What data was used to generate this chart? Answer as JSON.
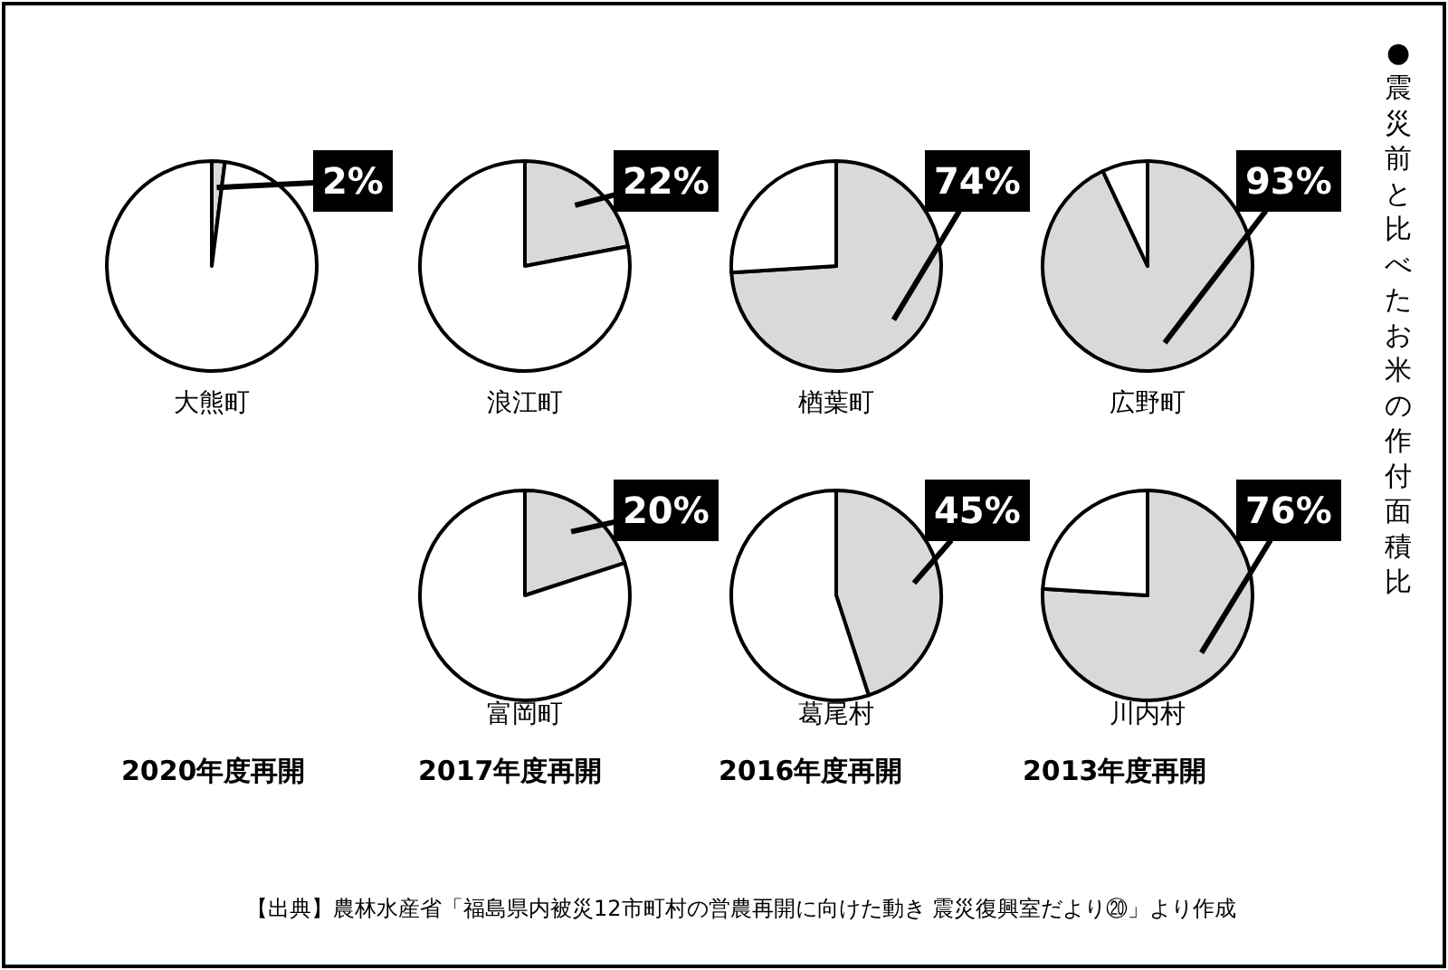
{
  "chart_data": [
    {
      "type": "pie",
      "title": "大熊町",
      "categories": [
        null,
        null
      ],
      "values": [
        2,
        98
      ],
      "colors": [
        "#d9d9d9",
        "#ffffff"
      ],
      "value_labels": [
        "2%",
        null
      ]
    },
    {
      "type": "pie",
      "title": "浪江町",
      "categories": [
        null,
        null
      ],
      "values": [
        22,
        78
      ],
      "colors": [
        "#d9d9d9",
        "#ffffff"
      ],
      "value_labels": [
        "22%",
        null
      ]
    },
    {
      "type": "pie",
      "title": "楢葉町",
      "categories": [
        null,
        null
      ],
      "values": [
        74,
        26
      ],
      "colors": [
        "#d9d9d9",
        "#ffffff"
      ],
      "value_labels": [
        "74%",
        null
      ]
    },
    {
      "type": "pie",
      "title": "広野町",
      "categories": [
        null,
        null
      ],
      "values": [
        93,
        7
      ],
      "colors": [
        "#d9d9d9",
        "#ffffff"
      ],
      "value_labels": [
        "93%",
        null
      ]
    },
    {
      "type": "pie",
      "title": "富岡町",
      "categories": [
        null,
        null
      ],
      "values": [
        20,
        80
      ],
      "colors": [
        "#d9d9d9",
        "#ffffff"
      ],
      "value_labels": [
        "20%",
        null
      ]
    },
    {
      "type": "pie",
      "title": "葛尾村",
      "categories": [
        null,
        null
      ],
      "values": [
        45,
        55
      ],
      "colors": [
        "#d9d9d9",
        "#ffffff"
      ],
      "value_labels": [
        "45%",
        null
      ]
    },
    {
      "type": "pie",
      "title": "川内村",
      "categories": [
        null,
        null
      ],
      "values": [
        76,
        24
      ],
      "colors": [
        "#d9d9d9",
        "#ffffff"
      ],
      "value_labels": [
        "76%",
        null
      ]
    },
    {
      "type": "other",
      "title": "●震災前と比べたお米の作付面積比",
      "annotations": [
        "2020年度再開",
        "2017年度再開",
        "2016年度再開",
        "2013年度再開",
        "【出典】農林水産省「福島県内被災12市町村の営農再開に向けた動き 震災復興室だより⑳」より作成"
      ]
    }
  ]
}
